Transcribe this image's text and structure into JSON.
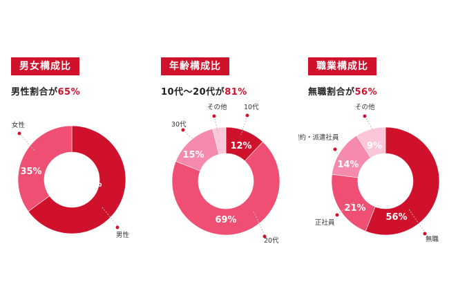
{
  "chart_data": [
    {
      "type": "pie",
      "badge": "男女構成比",
      "subtitle_prefix": "男性割合が",
      "subtitle_value": "65%",
      "categories": [
        "男性",
        "女性"
      ],
      "values": [
        65,
        35
      ],
      "value_labels": [
        "65%",
        "35%"
      ],
      "colors": [
        "#d0112b",
        "#ef4f72"
      ]
    },
    {
      "type": "pie",
      "badge": "年齢構成比",
      "subtitle_prefix": "10代〜20代が",
      "subtitle_value": "81%",
      "categories": [
        "10代",
        "20代",
        "30代",
        "その他"
      ],
      "values": [
        12,
        69,
        15,
        4
      ],
      "value_labels": [
        "12%",
        "69%",
        "15%",
        ""
      ],
      "colors": [
        "#d0112b",
        "#ef4f72",
        "#f58aac",
        "#fbc7d8"
      ]
    },
    {
      "type": "pie",
      "badge": "職業構成比",
      "subtitle_prefix": "無職割合が",
      "subtitle_value": "56%",
      "categories": [
        "無職",
        "正社員",
        "契約・派遣社員",
        "その他"
      ],
      "values": [
        56,
        21,
        14,
        9
      ],
      "value_labels": [
        "56%",
        "21%",
        "14%",
        "9%"
      ],
      "colors": [
        "#d0112b",
        "#ef4f72",
        "#f58aac",
        "#fbc7d8"
      ]
    }
  ]
}
